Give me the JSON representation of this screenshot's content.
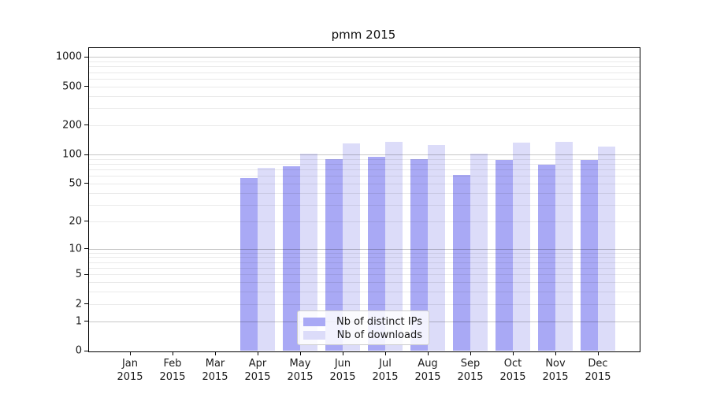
{
  "figure": {
    "background": "#ffffff"
  },
  "chart_data": {
    "type": "bar",
    "title": "pmm 2015",
    "categories": [
      "Jan 2015",
      "Feb 2015",
      "Mar 2015",
      "Apr 2015",
      "May 2015",
      "Jun 2015",
      "Jul 2015",
      "Aug 2015",
      "Sep 2015",
      "Oct 2015",
      "Nov 2015",
      "Dec 2015"
    ],
    "series": [
      {
        "name": "Nb of distinct IPs",
        "color": "#a9a9f5",
        "values": [
          0,
          0,
          0,
          57,
          76,
          90,
          95,
          90,
          62,
          88,
          79,
          88
        ]
      },
      {
        "name": "Nb of downloads",
        "color": "#dcdcf9",
        "values": [
          0,
          0,
          0,
          73,
          102,
          130,
          135,
          125,
          102,
          132,
          135,
          120
        ]
      }
    ],
    "xlabel": "",
    "ylabel": "",
    "y_scale": "log10(1+value), 0 at baseline",
    "y_ticks": [
      0,
      1,
      2,
      5,
      10,
      20,
      50,
      100,
      200,
      500,
      1000
    ],
    "ylim": [
      0,
      1260
    ],
    "grid": true,
    "grid_emphasis_ticks": [
      1,
      10,
      100,
      1000
    ],
    "legend": {
      "position": "inside bottom-center",
      "entries": [
        "Nb of distinct IPs",
        "Nb of downloads"
      ]
    }
  }
}
